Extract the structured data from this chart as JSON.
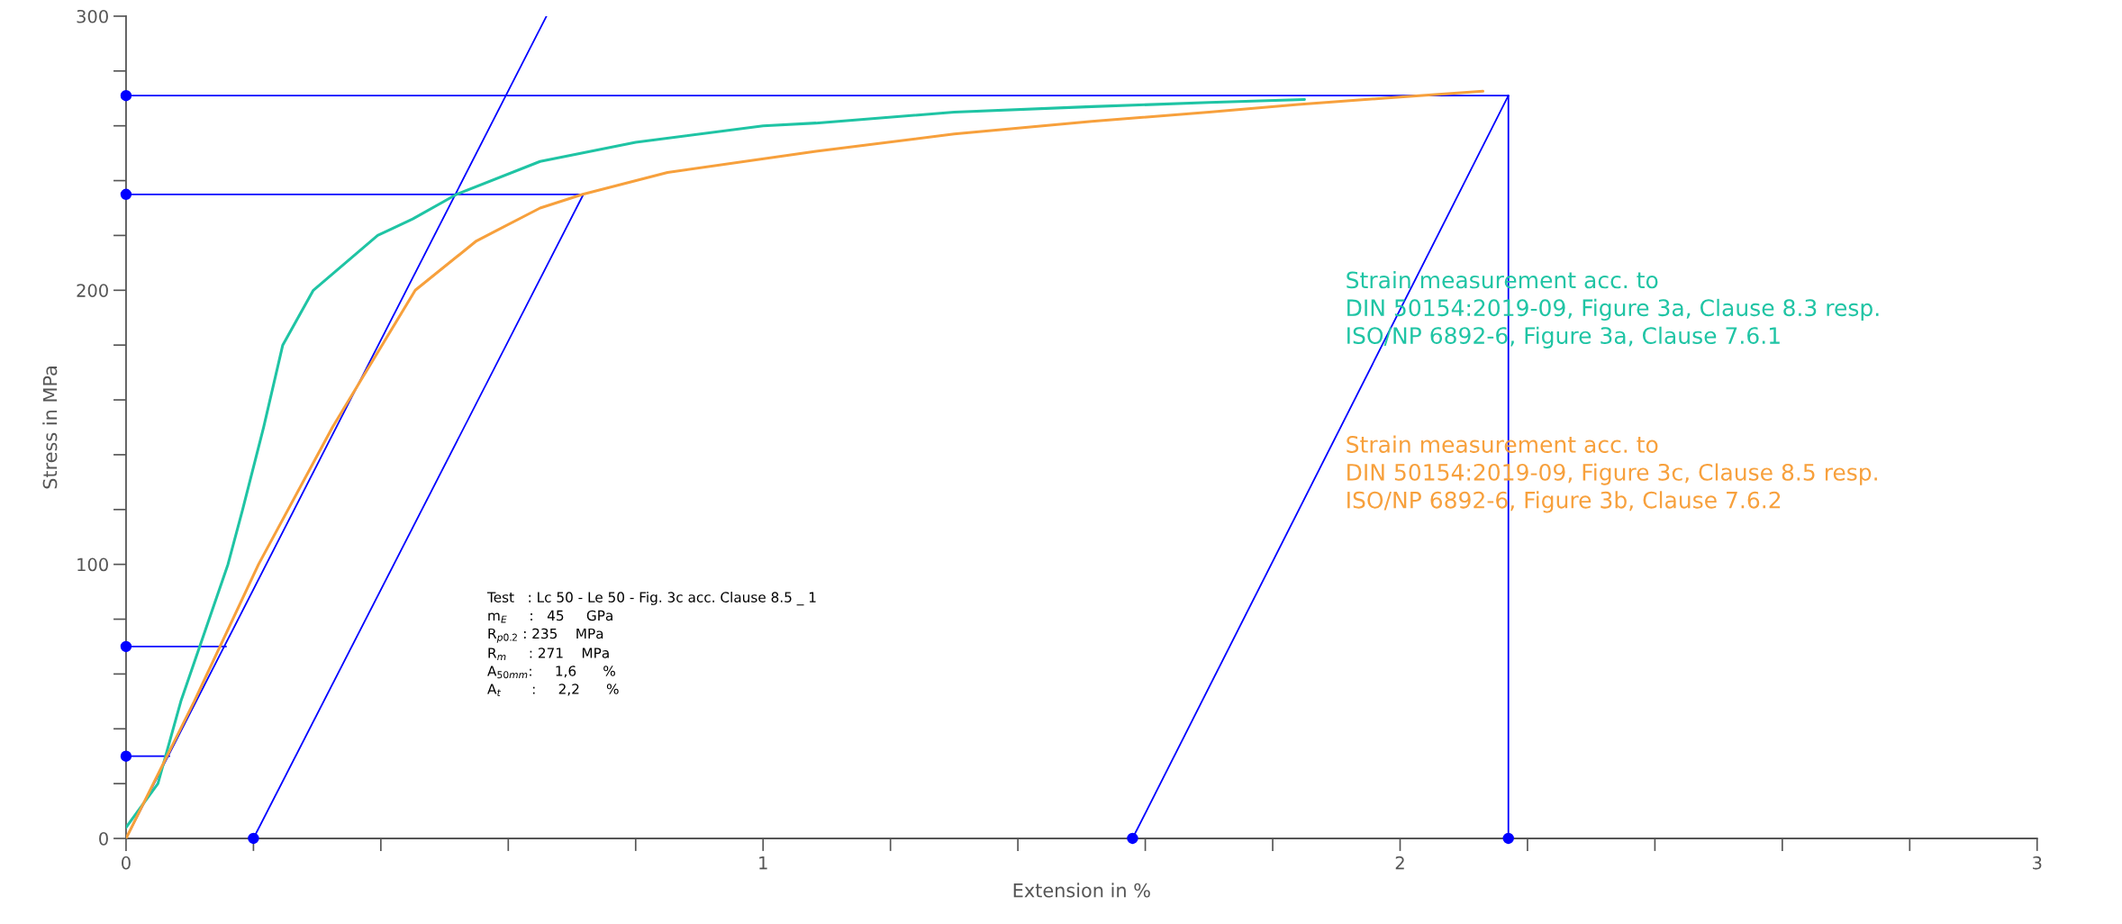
{
  "chart_data": {
    "type": "line",
    "xlabel": "Extension in %",
    "ylabel": "Stress in MPa",
    "xlim": [
      0,
      3
    ],
    "ylim": [
      0,
      300
    ],
    "xticks": [
      0,
      {
        "value": 0.2,
        "label": null
      },
      {
        "value": 0.4,
        "label": null
      },
      {
        "value": 0.6,
        "label": null
      },
      {
        "value": 0.8,
        "label": null
      },
      1,
      {
        "value": 1.2,
        "label": null
      },
      {
        "value": 1.4,
        "label": null
      },
      {
        "value": 1.6,
        "label": null
      },
      {
        "value": 1.8,
        "label": null
      },
      2,
      {
        "value": 2.2,
        "label": null
      },
      {
        "value": 2.4,
        "label": null
      },
      {
        "value": 2.6,
        "label": null
      },
      {
        "value": 2.8,
        "label": null
      },
      3
    ],
    "yticks": [
      0,
      {
        "value": 20,
        "label": null
      },
      {
        "value": 40,
        "label": null
      },
      {
        "value": 60,
        "label": null
      },
      {
        "value": 80,
        "label": null
      },
      100,
      {
        "value": 120,
        "label": null
      },
      {
        "value": 140,
        "label": null
      },
      {
        "value": 160,
        "label": null
      },
      {
        "value": 180,
        "label": null
      },
      200,
      {
        "value": 220,
        "label": null
      },
      {
        "value": 240,
        "label": null
      },
      {
        "value": 260,
        "label": null
      },
      {
        "value": 280,
        "label": null
      },
      300
    ],
    "series": [
      {
        "name": "Strain measurement acc. to\nDIN 50154:2019-09, Figure 3a, Clause 8.3 resp.\nISO/NP 6892-6, Figure 3a, Clause 7.6.1",
        "color": "#1fc4a4",
        "x": [
          0,
          0.05,
          0.086,
          0.16,
          0.183,
          0.216,
          0.246,
          0.294,
          0.395,
          0.45,
          0.519,
          0.65,
          0.8,
          1.0,
          1.083,
          1.3,
          1.516,
          1.7,
          1.85
        ],
        "values": [
          4,
          20,
          50,
          100,
          120,
          150,
          180,
          200,
          220,
          226,
          235,
          247,
          254,
          260,
          261,
          265,
          267,
          268.5,
          269.6
        ]
      },
      {
        "name": "Strain measurement acc. to\nDIN 50154:2019-09, Figure 3c, Clause 8.5 resp.\nISO/NP 6892-6, Figure 3b, Clause 7.6.2",
        "color": "#f7a03c",
        "x": [
          0,
          0.107,
          0.208,
          0.324,
          0.454,
          0.55,
          0.65,
          0.717,
          0.85,
          1.083,
          1.3,
          1.516,
          1.7,
          1.84,
          2.0,
          2.13
        ],
        "values": [
          0,
          50,
          100,
          150,
          200,
          218,
          230,
          235,
          243,
          250.7,
          257,
          261.6,
          265,
          267.8,
          270.5,
          272.6
        ]
      },
      {
        "color": "#0000ff",
        "x": [
          0,
          2.17
        ],
        "values": [
          271,
          271
        ]
      },
      {
        "color": "#0000ff",
        "x": [
          0,
          0.718
        ],
        "values": [
          235,
          235
        ]
      },
      {
        "color": "#0000ff",
        "x": [
          0,
          0.157
        ],
        "values": [
          70,
          70
        ]
      },
      {
        "color": "#0000ff",
        "x": [
          0,
          0.068
        ],
        "values": [
          30,
          30
        ]
      },
      {
        "color": "#0000ff",
        "x": [
          0,
          0.66
        ],
        "values": [
          0,
          300
        ]
      },
      {
        "color": "#0000ff",
        "x": [
          0.2,
          0.718
        ],
        "values": [
          0,
          235
        ]
      },
      {
        "color": "#0000ff",
        "x": [
          1.58,
          2.17
        ],
        "values": [
          0,
          271
        ]
      },
      {
        "color": "#0000ff",
        "x": [
          2.17,
          2.17
        ],
        "values": [
          0,
          271
        ]
      },
      {
        "type": "scatter",
        "color": "#0000ff",
        "marker": "circle",
        "x": [
          0,
          0,
          0,
          0,
          0.2,
          1.58,
          2.17
        ],
        "values": [
          271,
          235,
          70,
          30,
          0,
          0,
          0
        ]
      }
    ],
    "annotations": [
      "Test   : Lc 50 - Le 50 - Fig. 3c acc. Clause 8.5 _ 1\nm$_{E}$     :   45     GPa\nR$_{p0.2}$ : 235    MPa\nR$_{m}$     : 271    MPa\nA$_{50mm}$:     1,6      %\nA$_{t}$       :     2,2      %"
    ]
  }
}
